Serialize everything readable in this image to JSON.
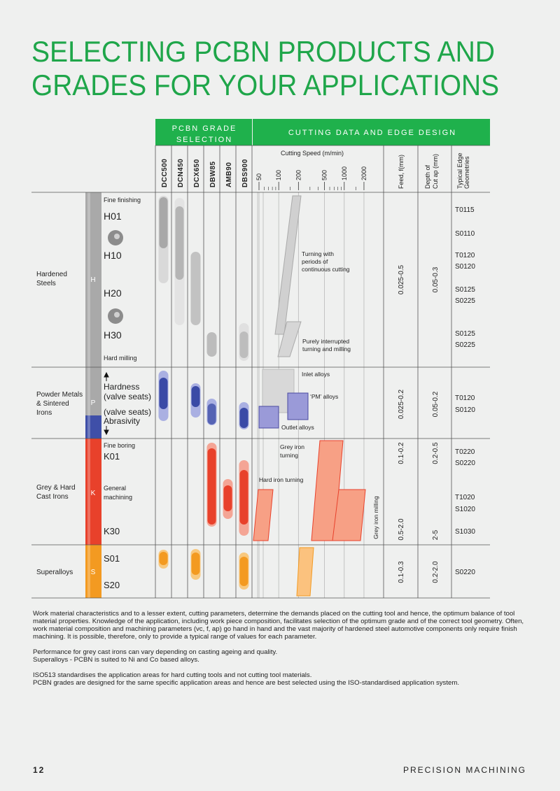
{
  "header": {
    "title_lines": [
      "SELECTING PCBN PRODUCTS AND",
      "GRADES FOR YOUR APPLICATIONS"
    ]
  },
  "table": {
    "group_headers": [
      [
        "PCBN GRADE",
        "SELECTION"
      ],
      [
        "CUTTING DATA AND EDGE DESIGN"
      ]
    ],
    "grades": [
      "DCC500",
      "DCN450",
      "DCX650",
      "DBW85",
      "AMB90",
      "DBS900"
    ],
    "speed_label": "Cutting Speed (m/min)",
    "speed_ticks": [
      50,
      100,
      200,
      500,
      1000,
      2000
    ],
    "feed_label": "Feed, f(mm)",
    "depth_label": [
      "Depth of",
      "Cut ap (mm)"
    ],
    "geometry_label": [
      "Typical Edge",
      "Geometries"
    ],
    "materials": [
      {
        "name_lines": [
          "Hardened",
          "Steels"
        ],
        "letter": "H",
        "sublabels": [
          "Fine finishing",
          "H01",
          "H10",
          "H20",
          "H30",
          "Hard milling"
        ],
        "feed": [
          "0.025-0.5"
        ],
        "depth": [
          "0.05-0.3"
        ],
        "geometries": [
          "T0115",
          "S0110",
          "T0120",
          "S0120",
          "S0125",
          "S0225",
          "S0125",
          "S0225"
        ]
      },
      {
        "name_lines": [
          "Powder Metals",
          "& Sintered",
          "Irons"
        ],
        "letter": "P",
        "sublabels": [
          "Hardness",
          "(valve seats)",
          "(valve seats)",
          "Abrasivity"
        ],
        "feed": [
          "0.025-0.2"
        ],
        "depth": [
          "0.05-0.2"
        ],
        "geometries": [
          "T0120",
          "S0120"
        ]
      },
      {
        "name_lines": [
          "Grey & Hard",
          "Cast Irons"
        ],
        "letter": "K",
        "sublabels": [
          "Fine boring",
          "K01",
          "General",
          "machining",
          "K30"
        ],
        "feed": [
          "0.1-0.2",
          "0.5-2.0"
        ],
        "depth": [
          "0.2-0.5",
          "2-5"
        ],
        "geometries": [
          "T0220",
          "S0220",
          "T1020",
          "S1020",
          "S1030"
        ]
      },
      {
        "name_lines": [
          "Superalloys"
        ],
        "letter": "S",
        "sublabels": [
          "S01",
          "S20"
        ],
        "feed": [
          "0.1-0.3"
        ],
        "depth": [
          "0.2-2.0"
        ],
        "geometries": [
          "S0220"
        ]
      }
    ],
    "annotations": [
      [
        "Turning with",
        "periods of",
        "continuous cutting"
      ],
      [
        "Purely interrupted",
        "turning and milling"
      ],
      [
        "Inlet alloys"
      ],
      [
        "‘PM’ alloys"
      ],
      [
        "Outlet alloys"
      ],
      [
        "Grey iron",
        "turning"
      ],
      [
        "Hard iron turning"
      ],
      [
        "Grey iron milling"
      ]
    ]
  },
  "notes": {
    "paragraph": "Work material characteristics and to a lesser extent, cutting parameters, determine the demands placed on the cutting tool and hence, the optimum balance of tool material properties. Knowledge of the application, including work piece composition, facilitates selection of the optimum grade and of the correct tool geometry. Often, work material composition and machining parameters (vc, f, ap) go hand in hand and the vast majority of hardened steel automotive components only require finish machining. It is possible, therefore, only to provide a typical range of values for each parameter.",
    "lines_a": [
      "Performance for grey cast irons can vary depending on casting ageing and quality.",
      "Superalloys - PCBN is suited to Ni and Co based alloys."
    ],
    "lines_b": [
      "ISO513 standardises the application areas for hard cutting tools and not cutting tool materials.",
      "PCBN grades are designed for the same specific application areas and hence are best selected using the ISO-standardised application system."
    ]
  },
  "footer": {
    "page": "12",
    "section": "PRECISION MACHINING"
  }
}
